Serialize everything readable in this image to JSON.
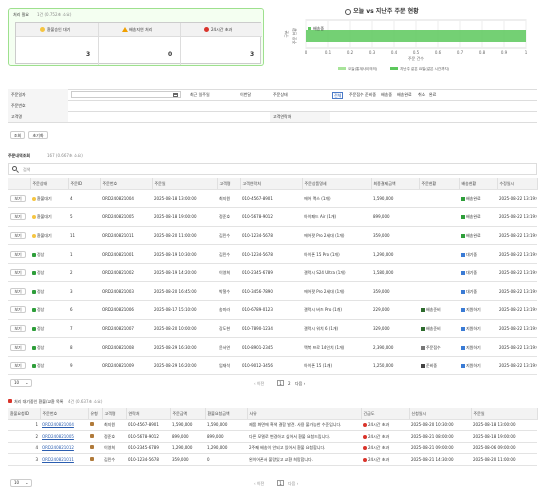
{
  "summary": {
    "title": "처리 필요",
    "subtitle": "1건 (0.752초 소요)",
    "cards": [
      {
        "icon": "smile-face-icon",
        "icon_color": "#f5c542",
        "label": "환불승인 대기",
        "value": "3"
      },
      {
        "icon": "warning-icon",
        "icon_color": "#f0a000",
        "label": "배송지연 처리",
        "value": "0"
      },
      {
        "icon": "red-circle-icon",
        "icon_color": "#d9342b",
        "label": "24시간 초과",
        "value": "3"
      }
    ]
  },
  "chart_data": {
    "type": "bar",
    "title": "오늘 vs 지난주 주문 현황",
    "categories": [
      "주문 현황"
    ],
    "series": [
      {
        "name": "오늘(통계사이의의)",
        "values": [
          0
        ]
      },
      {
        "name": "지난주 같은 요일(같은 시간까지)",
        "values": [
          1
        ]
      }
    ],
    "xlabel": "주문 건수",
    "ylabel": "구분",
    "xlim": [
      0,
      1
    ],
    "xticks": [
      "0",
      "0.1",
      "0.2",
      "0.3",
      "0.4",
      "0.5",
      "0.6",
      "0.7",
      "0.8",
      "0.9",
      "1"
    ],
    "inline_label": "배송중",
    "grid": true,
    "legend": "bottom",
    "colors": [
      "#a8e49a",
      "#5cc85c"
    ]
  },
  "filters": {
    "order_date": "주문일자",
    "recent_date": "최근 일주일",
    "this_month": "이번달",
    "order_status": "주문상태",
    "statuses": [
      "전체",
      "주문접수",
      "준비중",
      "배송중",
      "배송완료",
      "취소",
      "완료"
    ],
    "order_no": "주문번호",
    "customer": "고객명",
    "customer_phone": "고객연락처",
    "search": "조회",
    "reset": "초기화"
  },
  "orders": {
    "section_title": "주문내역조회",
    "count": "167 (0.667초 소요)",
    "headers": [
      "",
      "주문상태",
      "주문ID",
      "주문번호",
      "주문일",
      "고객명",
      "고객연락처",
      "주문상품명세",
      "최종결제금액",
      "주문현황",
      "배송현황",
      "수정일시"
    ],
    "view": "보기",
    "rows": [
      {
        "ic": "smile-face-icon",
        "st": "환불대기",
        "id": "4",
        "no": "ORD240821004",
        "dt": "2025-08-18 13:00:00",
        "nm": "최지원",
        "ph": "010-4567-8901",
        "item": "에어 맥스 (1개)",
        "amt": "1,590,000",
        "os": "",
        "osi": "",
        "ds": "배송완료",
        "dsi": "green"
      },
      {
        "ic": "smile-face-icon",
        "st": "환불대기",
        "id": "5",
        "no": "ORD240821005",
        "dt": "2025-08-18 19:00:00",
        "nm": "정준호",
        "ph": "010-5678-9012",
        "item": "아이패드 Air (1개)",
        "amt": "899,000",
        "os": "",
        "osi": "",
        "ds": "배송완료",
        "dsi": "green"
      },
      {
        "ic": "smile-face-icon",
        "st": "환불대기",
        "id": "11",
        "no": "ORD240821011",
        "dt": "2025-08-20 11:00:00",
        "nm": "김민수",
        "ph": "010-1234-5678",
        "item": "에어팟 Pro 2세대 (1개)",
        "amt": "359,000",
        "os": "",
        "osi": "",
        "ds": "배송완료",
        "dsi": "green"
      },
      {
        "ic": "check-box-icon",
        "st": "정상",
        "id": "1",
        "no": "ORD240821001",
        "dt": "2025-08-19 10:30:00",
        "nm": "김민수",
        "ph": "010-1234-5678",
        "item": "아이폰 15 Pro (1개)",
        "amt": "1,290,000",
        "os": "",
        "osi": "",
        "ds": "대기중",
        "dsi": "blue"
      },
      {
        "ic": "check-box-icon",
        "st": "정상",
        "id": "2",
        "no": "ORD240821002",
        "dt": "2025-08-19 14:20:00",
        "nm": "이영희",
        "ph": "010-2345-6789",
        "item": "갤럭시 S24 Ultra (1개)",
        "amt": "1,580,000",
        "os": "",
        "osi": "",
        "ds": "대기중",
        "dsi": "blue"
      },
      {
        "ic": "check-box-icon",
        "st": "정상",
        "id": "3",
        "no": "ORD240821003",
        "dt": "2025-08-20 16:45:00",
        "nm": "박철수",
        "ph": "010-3456-7890",
        "item": "에어팟 Pro 2세대 (1개)",
        "amt": "359,000",
        "os": "",
        "osi": "",
        "ds": "대기중",
        "dsi": "blue"
      },
      {
        "ic": "check-box-icon",
        "st": "정상",
        "id": "6",
        "no": "ORD240821006",
        "dt": "2025-08-17 15:10:00",
        "nm": "송미라",
        "ph": "010-6789-0123",
        "item": "갤럭시 버즈 Pro (1개)",
        "amt": "229,000",
        "os": "배송준비",
        "osi": "darkgreen",
        "ds": "지원하기",
        "dsi": "blue"
      },
      {
        "ic": "check-box-icon",
        "st": "정상",
        "id": "7",
        "no": "ORD240821007",
        "dt": "2025-08-20 10:00:00",
        "nm": "강도현",
        "ph": "010-7890-1234",
        "item": "갤럭시 워치 6 (1개)",
        "amt": "329,000",
        "os": "배송준비",
        "osi": "darkgreen",
        "ds": "지원하기",
        "dsi": "blue"
      },
      {
        "ic": "check-box-icon",
        "st": "정상",
        "id": "8",
        "no": "ORD240821008",
        "dt": "2025-08-29 16:30:00",
        "nm": "윤서연",
        "ph": "010-8901-2345",
        "item": "맥북 프로 14인치 (1개)",
        "amt": "2,390,000",
        "os": "주문접수",
        "osi": "gray",
        "ds": "지원하기",
        "dsi": "blue"
      },
      {
        "ic": "check-box-icon",
        "st": "정상",
        "id": "9",
        "no": "ORD240821009",
        "dt": "2025-08-29 16:20:00",
        "nm": "임재석",
        "ph": "010-9012-3456",
        "item": "아이폰 15 (1개)",
        "amt": "1,250,000",
        "os": "준비중",
        "osi": "dark",
        "ds": "지원하기",
        "dsi": "blue"
      }
    ],
    "updated": "2025-08-22 13:19:00",
    "page_size": "10",
    "prev": "이전",
    "pages": [
      "1",
      "2"
    ],
    "next": "다음"
  },
  "refunds": {
    "section_title": "처리 대기중인 환불/교환 목록",
    "count": "4건 (0.637초 소요)",
    "headers": [
      "환불요청ID",
      "주문번호",
      "유형",
      "고객명",
      "연락처",
      "주문금액",
      "환불요청금액",
      "사유",
      "긴급도",
      "신청일시",
      "주문일"
    ],
    "rows": [
      {
        "id": "1",
        "no": "ORD240821004",
        "nm": "최지원",
        "ph": "010-4567-8901",
        "amt": "1,590,000",
        "ramt": "1,590,000",
        "rs": "제품 화면에 흑색 결함 발견. 사용 불가능한 수준입니다.",
        "urg": "24시간 초과",
        "req": "2025-08-20 10:30:00",
        "od": "2025-08-18 13:00:00"
      },
      {
        "id": "2",
        "no": "ORD240821005",
        "nm": "정준호",
        "ph": "010-5678-9012",
        "amt": "899,000",
        "ramt": "899,000",
        "rs": "다른 모델로 변경하고 싶어서 환불 요청드립니다.",
        "urg": "24시간 초과",
        "req": "2025-08-21 08:00:00",
        "od": "2025-08-18 19:00:00"
      },
      {
        "id": "4",
        "no": "ORD240821012",
        "nm": "이영희",
        "ph": "010-2345-6789",
        "amt": "1,290,000",
        "ramt": "1,290,000",
        "rs": "2주째 배송이 안되고 있어서 환불 요청합니다.",
        "urg": "24시간 초과",
        "req": "2025-08-21 09:00:00",
        "od": "2025-08-06 09:00:00"
      },
      {
        "id": "3",
        "no": "ORD240821011",
        "nm": "김민수",
        "ph": "010-1234-5678",
        "amt": "359,000",
        "ramt": "0",
        "rs": "왼이어폰서 불량있고 교환 희망합니다.",
        "urg": "24시간 초과",
        "req": "2025-08-21 14:30:00",
        "od": "2025-08-20 11:00:00"
      }
    ],
    "page_size": "10",
    "prev": "이전",
    "pages": [
      "1"
    ],
    "next": "다음"
  }
}
